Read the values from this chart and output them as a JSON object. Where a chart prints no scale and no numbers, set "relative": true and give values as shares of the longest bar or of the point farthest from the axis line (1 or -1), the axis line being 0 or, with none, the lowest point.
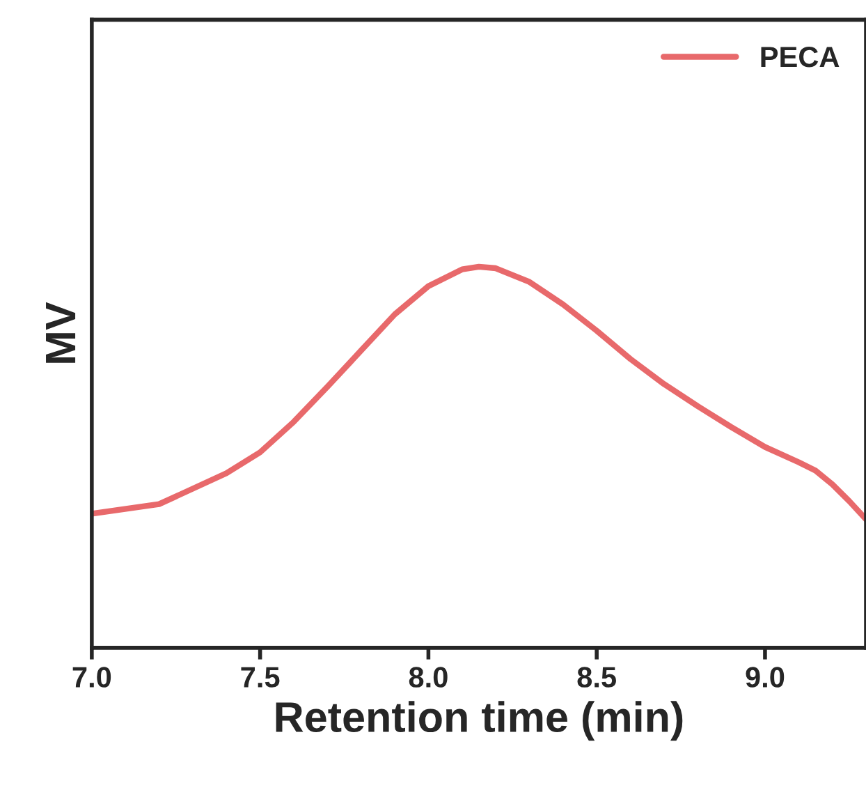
{
  "chart_data": {
    "type": "line",
    "xlabel": "Retention time (min)",
    "ylabel": "MV",
    "relative": true,
    "xlim": [
      7.0,
      9.3
    ],
    "xticks": [
      {
        "value": 7.0,
        "label": "7.0"
      },
      {
        "value": 7.5,
        "label": "7.5"
      },
      {
        "value": 8.0,
        "label": "8.0"
      },
      {
        "value": 8.5,
        "label": "8.5"
      },
      {
        "value": 9.0,
        "label": "9.0"
      }
    ],
    "x": [
      7.0,
      7.2,
      7.4,
      7.5,
      7.6,
      7.7,
      7.8,
      7.9,
      8.0,
      8.1,
      8.15,
      8.2,
      8.3,
      8.4,
      8.5,
      8.6,
      8.7,
      8.8,
      8.9,
      9.0,
      9.1,
      9.15,
      9.2,
      9.25,
      9.3
    ],
    "series": [
      {
        "name": "PECA",
        "color": "#e8696b",
        "values": [
          0.352,
          0.377,
          0.458,
          0.513,
          0.593,
          0.685,
          0.78,
          0.875,
          0.949,
          0.993,
          1.0,
          0.996,
          0.96,
          0.901,
          0.832,
          0.758,
          0.692,
          0.634,
          0.579,
          0.527,
          0.487,
          0.465,
          0.429,
          0.385,
          0.337
        ]
      }
    ],
    "legend": "top right",
    "grid": false,
    "tick_labels": "x",
    "line_style": "solid",
    "marker": "none"
  }
}
